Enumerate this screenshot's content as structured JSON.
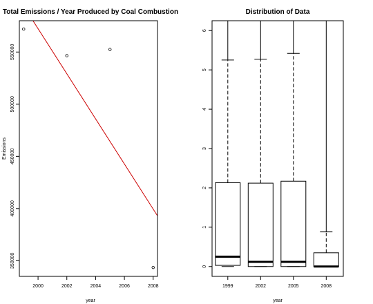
{
  "chart_data": [
    {
      "type": "scatter",
      "title": "Total Emissions / Year Produced by Coal Combustion",
      "xlabel": "year",
      "ylabel": "Emissions",
      "x_ticks": [
        2000,
        2002,
        2004,
        2006,
        2008
      ],
      "y_ticks": [
        350000,
        400000,
        450000,
        500000,
        550000
      ],
      "y_tick_labels": [
        "350000",
        "400000",
        "450000",
        "500000",
        "550000"
      ],
      "xlim": [
        1998.7,
        2008.3
      ],
      "ylim": [
        335000,
        580000
      ],
      "points": [
        {
          "x": 1999,
          "y": 572000
        },
        {
          "x": 2002,
          "y": 546500
        },
        {
          "x": 2005,
          "y": 552500
        },
        {
          "x": 2008,
          "y": 343500
        }
      ],
      "trend_line": {
        "color": "#cc0000",
        "x": [
          1998.7,
          2008.3
        ],
        "y": [
          600500,
          393000
        ]
      },
      "grid": false
    },
    {
      "type": "boxplot",
      "title": "Distribution of Data",
      "xlabel": "year",
      "ylabel": "",
      "categories": [
        "1999",
        "2002",
        "2005",
        "2008"
      ],
      "y_ticks": [
        0,
        1,
        2,
        3,
        4,
        5,
        6
      ],
      "ylim": [
        -0.25,
        6.25
      ],
      "boxes": [
        {
          "label": "1999",
          "low": 0.0,
          "q1": 0.03,
          "median": 0.25,
          "q3": 2.13,
          "whisker_high": 5.25
        },
        {
          "label": "2002",
          "low": 0.0,
          "q1": 0.0,
          "median": 0.12,
          "q3": 2.12,
          "whisker_high": 5.27
        },
        {
          "label": "2005",
          "low": 0.0,
          "q1": 0.0,
          "median": 0.12,
          "q3": 2.17,
          "whisker_high": 5.42
        },
        {
          "label": "2008",
          "low": 0.0,
          "q1": 0.0,
          "median": 0.0,
          "q3": 0.35,
          "whisker_high": 0.88
        }
      ],
      "grid": false
    }
  ]
}
